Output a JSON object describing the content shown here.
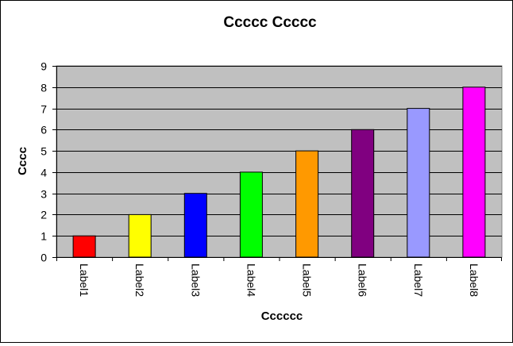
{
  "chart_data": {
    "type": "bar",
    "title": "Ccccc Ccccc",
    "xlabel": "Cccccc",
    "ylabel": "Cccc",
    "categories": [
      "Label1",
      "Label2",
      "Label3",
      "Label4",
      "Label5",
      "Label6",
      "Label7",
      "Label8"
    ],
    "values": [
      1,
      2,
      3,
      4,
      5,
      6,
      7,
      8
    ],
    "colors": [
      "#ff0000",
      "#ffff00",
      "#0000ff",
      "#00ff00",
      "#ff9900",
      "#800080",
      "#9999ff",
      "#ff00ff"
    ],
    "ylim": [
      0,
      9
    ],
    "yticks": [
      "0",
      "1",
      "2",
      "3",
      "4",
      "5",
      "6",
      "7",
      "8",
      "9"
    ],
    "plot_background": "#c0c0c0",
    "grid": true,
    "legend": "none"
  }
}
